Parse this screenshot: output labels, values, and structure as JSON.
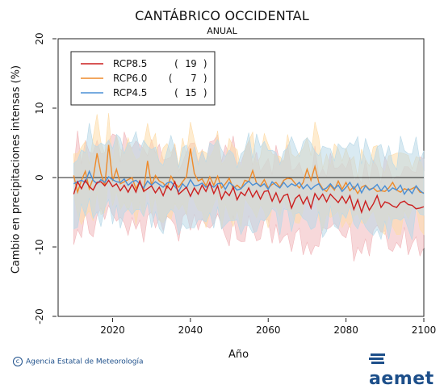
{
  "header": {
    "title": "CANTÁBRICO OCCIDENTAL",
    "subtitle": "ANUAL"
  },
  "footer": {
    "credit": "Agencia Estatal de Meteorología",
    "logo": "aemet"
  },
  "colors": {
    "rcp85": "#cc1f1f",
    "rcp60": "#ee8a2a",
    "rcp45": "#4a8fd6",
    "band85": "#f1b8bc",
    "band60": "#fddcaa",
    "band45": "#b9d9e8"
  },
  "chart_data": {
    "type": "line",
    "title": "CANTÁBRICO OCCIDENTAL",
    "subtitle": "ANUAL",
    "xlabel": "Año",
    "ylabel": "Cambio en precipitaciones intensas (%)",
    "xlim": [
      2006,
      2100
    ],
    "ylim": [
      -20,
      20
    ],
    "xticks": [
      2020,
      2040,
      2060,
      2080,
      2100
    ],
    "yticks": [
      -20,
      -10,
      0,
      10,
      20
    ],
    "legend_position": "top-left",
    "x": [
      2010,
      2011,
      2012,
      2013,
      2014,
      2015,
      2016,
      2017,
      2018,
      2019,
      2020,
      2021,
      2022,
      2023,
      2024,
      2025,
      2026,
      2027,
      2028,
      2029,
      2030,
      2031,
      2032,
      2033,
      2034,
      2035,
      2036,
      2037,
      2038,
      2039,
      2040,
      2041,
      2042,
      2043,
      2044,
      2045,
      2046,
      2047,
      2048,
      2049,
      2050,
      2051,
      2052,
      2053,
      2054,
      2055,
      2056,
      2057,
      2058,
      2059,
      2060,
      2061,
      2062,
      2063,
      2064,
      2065,
      2066,
      2067,
      2068,
      2069,
      2070,
      2071,
      2072,
      2073,
      2074,
      2075,
      2076,
      2077,
      2078,
      2079,
      2080,
      2081,
      2082,
      2083,
      2084,
      2085,
      2086,
      2087,
      2088,
      2089,
      2090,
      2091,
      2092,
      2093,
      2094,
      2095,
      2096,
      2097,
      2098,
      2099,
      2100
    ],
    "series": [
      {
        "name": "RCP8.5",
        "count": "( 19 )",
        "values": [
          -2.4,
          -0.6,
          -1.6,
          -0.4,
          -1.3,
          -1.8,
          -0.7,
          -0.6,
          -1.2,
          -0.4,
          -1.3,
          -0.9,
          -1.9,
          -1.1,
          -2.1,
          -1.0,
          -2.1,
          -0.5,
          -2.0,
          -1.6,
          -1.2,
          -2.2,
          -1.4,
          -2.6,
          -1.2,
          -1.8,
          -0.6,
          -2.4,
          -1.9,
          -1.4,
          -2.7,
          -1.5,
          -2.4,
          -1.1,
          -2.0,
          -0.7,
          -2.3,
          -1.2,
          -3.1,
          -2.0,
          -2.6,
          -1.4,
          -3.2,
          -2.1,
          -2.6,
          -1.5,
          -2.8,
          -1.9,
          -3.1,
          -2.0,
          -1.9,
          -3.4,
          -2.2,
          -3.6,
          -2.6,
          -2.4,
          -4.4,
          -3.0,
          -2.5,
          -3.8,
          -2.8,
          -4.4,
          -2.3,
          -3.2,
          -2.4,
          -3.5,
          -2.4,
          -3.0,
          -3.6,
          -2.7,
          -3.7,
          -2.6,
          -4.6,
          -3.2,
          -5.0,
          -3.4,
          -4.7,
          -3.8,
          -2.6,
          -4.3,
          -3.5,
          -3.7,
          -4.1,
          -4.3,
          -3.6,
          -3.4,
          -3.9,
          -4.0,
          -4.5,
          -4.4,
          -4.2
        ]
      },
      {
        "name": "RCP6.0",
        "count": "(   7 )",
        "values": [
          0.3,
          -2.1,
          -0.4,
          0.9,
          -1.6,
          -0.1,
          3.5,
          0.6,
          -1.2,
          4.7,
          -0.5,
          1.2,
          -0.9,
          -0.6,
          -0.3,
          0.0,
          -1.6,
          -0.5,
          -1.9,
          2.4,
          -1.1,
          0.3,
          -0.5,
          -0.8,
          -1.5,
          0.2,
          -0.8,
          -1.4,
          -0.6,
          0.1,
          4.2,
          0.6,
          -0.5,
          -0.2,
          -1.2,
          0.1,
          -1.1,
          0.2,
          -1.5,
          -0.9,
          -0.1,
          -1.6,
          -1.1,
          -1.6,
          -0.4,
          -0.6,
          1.0,
          -0.8,
          -1.2,
          -0.3,
          -1.5,
          -1.0,
          -0.7,
          -1.4,
          -0.4,
          -0.1,
          -0.2,
          -0.9,
          -1.5,
          -0.7,
          1.2,
          -0.4,
          1.6,
          -0.7,
          -1.6,
          -2.0,
          -1.1,
          -1.8,
          -0.5,
          -1.7,
          -0.7,
          -1.9,
          -1.3,
          -2.3,
          -1.4,
          -1.1,
          -1.7,
          -1.5,
          -2.0,
          -1.9,
          -2.0,
          -1.5,
          -0.7,
          -1.8,
          -2.1,
          -1.6,
          -1.8,
          -1.6,
          -1.3,
          -2.1,
          -2.2
        ]
      },
      {
        "name": "RCP4.5",
        "count": "( 15 )",
        "values": [
          -0.9,
          -0.6,
          -0.4,
          -0.7,
          0.9,
          -0.4,
          -0.9,
          -0.3,
          -0.7,
          0.1,
          -0.3,
          -0.6,
          -0.7,
          -0.2,
          -1.1,
          -0.6,
          -0.4,
          -0.9,
          -1.5,
          -0.5,
          -1.1,
          -0.6,
          -1.0,
          -1.4,
          -0.8,
          -0.6,
          -1.3,
          -2.0,
          -0.9,
          -1.5,
          -0.3,
          -1.2,
          -1.1,
          -0.8,
          -1.4,
          -1.0,
          -1.4,
          -0.9,
          -0.8,
          -1.7,
          -0.7,
          -1.2,
          -1.8,
          -1.6,
          -1.0,
          -0.5,
          -1.1,
          -0.8,
          -1.3,
          -0.9,
          -1.7,
          -0.6,
          -1.1,
          -1.5,
          -0.7,
          -1.4,
          -0.9,
          -1.2,
          -0.7,
          -1.6,
          -1.0,
          -1.7,
          -1.2,
          -0.9,
          -1.8,
          -1.5,
          -0.9,
          -1.6,
          -1.1,
          -2.0,
          -1.4,
          -0.7,
          -1.7,
          -0.9,
          -2.2,
          -1.2,
          -1.8,
          -1.5,
          -1.0,
          -1.9,
          -1.2,
          -2.0,
          -1.5,
          -1.8,
          -1.1,
          -2.4,
          -1.6,
          -2.3,
          -1.2,
          -1.9,
          -2.3
        ]
      }
    ],
    "bands": [
      {
        "name": "RCP8.5",
        "upper_offset": 5.5,
        "lower_offset": -5.5
      },
      {
        "name": "RCP6.0",
        "upper_offset": 4.5,
        "lower_offset": -4.5
      },
      {
        "name": "RCP4.5",
        "upper_offset": 5.0,
        "lower_offset": -5.0
      }
    ]
  }
}
